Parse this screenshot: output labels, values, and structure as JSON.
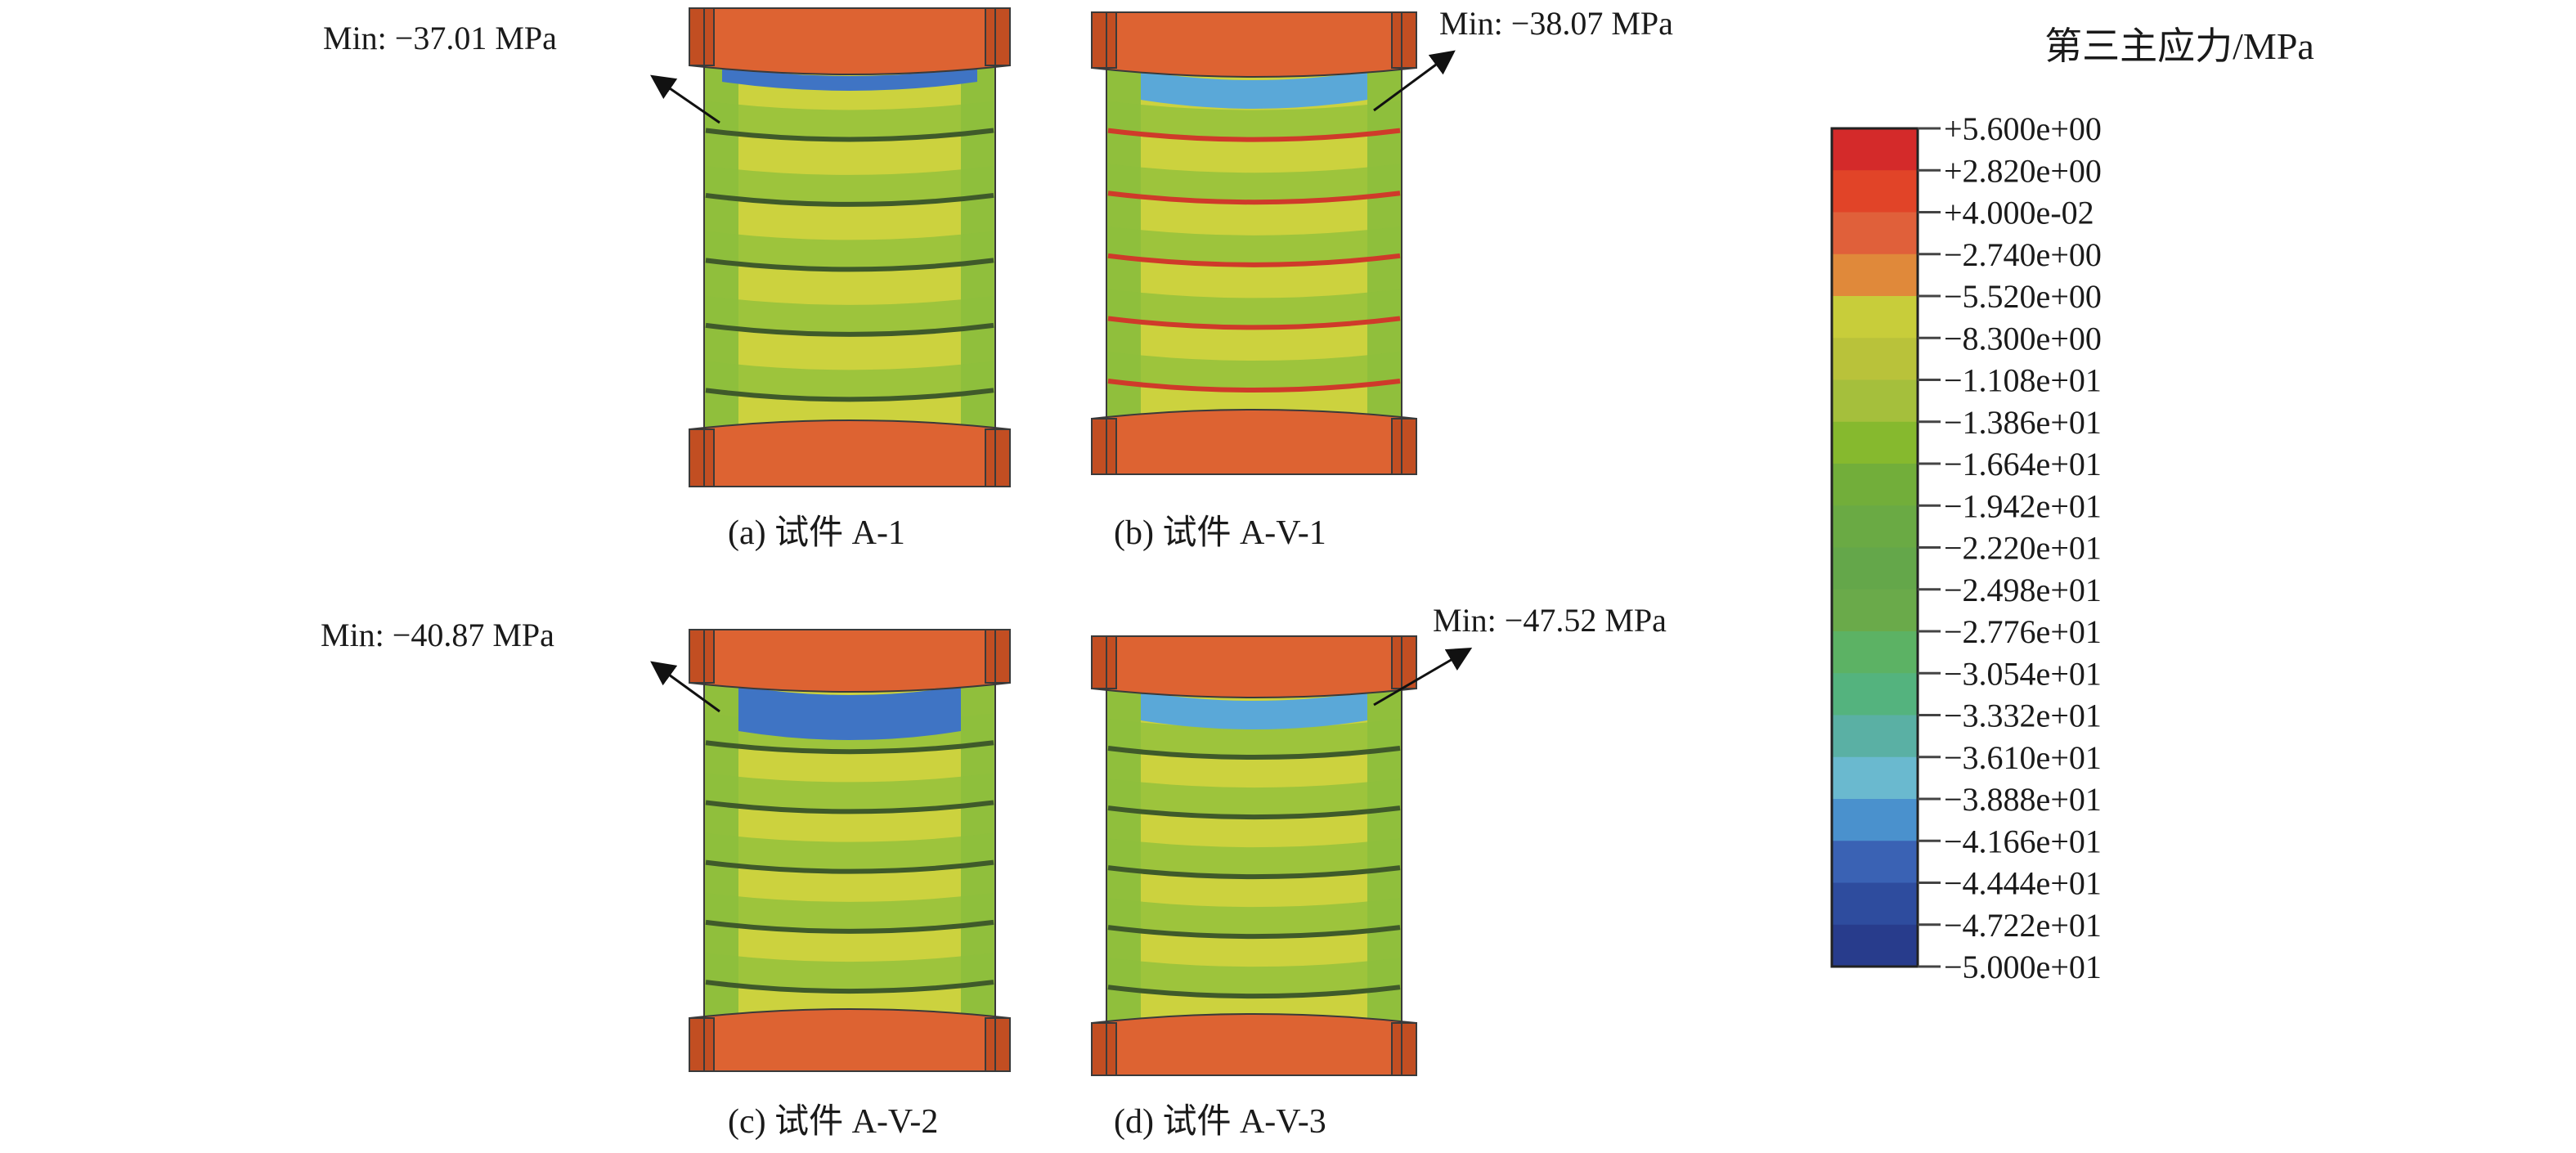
{
  "legend": {
    "title": "第三主应力/MPa",
    "ticks": [
      "+5.600e+00",
      "+2.820e+00",
      "+4.000e-02",
      "−2.740e+00",
      "−5.520e+00",
      "−8.300e+00",
      "−1.108e+01",
      "−1.386e+01",
      "−1.664e+01",
      "−1.942e+01",
      "−2.220e+01",
      "−2.498e+01",
      "−2.776e+01",
      "−3.054e+01",
      "−3.332e+01",
      "−3.610e+01",
      "−3.888e+01",
      "−4.166e+01",
      "−4.444e+01",
      "−4.722e+01",
      "−5.000e+01"
    ],
    "colors": [
      "#d42a2a",
      "#e14428",
      "#e0603a",
      "#e0893a",
      "#c8cd3a",
      "#b9c23a",
      "#a5bf3c",
      "#86b92e",
      "#72ae3a",
      "#6aaa44",
      "#64a74a",
      "#6aaa4a",
      "#5cb264",
      "#54b37e",
      "#5ab0a4",
      "#6ab9cf",
      "#4a91cd",
      "#3a62b4",
      "#2e4c9e",
      "#283c8c"
    ]
  },
  "panels": [
    {
      "id": "a",
      "caption": "(a) 试件 A-1",
      "min_label": "Min: −37.01 MPa"
    },
    {
      "id": "b",
      "caption": "(b) 试件 A-V-1",
      "min_label": "Min: −38.07 MPa"
    },
    {
      "id": "c",
      "caption": "(c) 试件 A-V-2",
      "min_label": "Min: −40.87 MPa"
    },
    {
      "id": "d",
      "caption": "(d) 试件 A-V-3",
      "min_label": "Min: −47.52 MPa"
    }
  ],
  "palette": {
    "cap": "#dd6332",
    "cap_dark": "#c24e22",
    "body_yellow": "#ccd23e",
    "body_green": "#8ebf3c",
    "edge_green": "#5eaf3a",
    "blue_band": "#5aa8d8",
    "blue_dark": "#3f74c4",
    "red_line": "#cf3a2a",
    "outline": "#3a3a3a"
  }
}
